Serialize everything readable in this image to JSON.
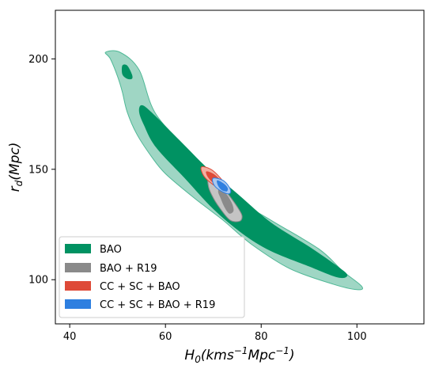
{
  "chart_data": {
    "type": "contour",
    "xlabel": {
      "base": "H",
      "base_sub": "0",
      "open": "(kms",
      "exp1": "−1",
      "mid": "Mpc",
      "exp2": "−1",
      "close": ")"
    },
    "ylabel": {
      "base": "r",
      "sub": "d",
      "rest": "(Mpc)"
    },
    "xlim": [
      37,
      114
    ],
    "ylim": [
      80,
      222
    ],
    "xticks": [
      40,
      60,
      80,
      100
    ],
    "yticks": [
      100,
      150,
      200
    ],
    "legend_placement": "bottom-left",
    "colors": {
      "BAO_outer": "#9fd6c4",
      "BAO_inner": "#009262",
      "BAO_edge": "#4fb896",
      "R19_outer": "#c4c4c4",
      "R19_inner": "#8a8a8a",
      "CC_outer": "#f2b0a2",
      "CC_inner": "#de4a38",
      "CCR19_outer": "#a9c8f0",
      "CCR19_inner": "#2e7fe0"
    },
    "series": [
      {
        "name": "BAO",
        "legend_color": "#009262",
        "regions": [
          {
            "level": "95%",
            "points": [
              [
                47.5,
                203
              ],
              [
                50.5,
                203
              ],
              [
                54.5,
                195
              ],
              [
                58,
                175
              ],
              [
                66,
                156
              ],
              [
                74,
                138
              ],
              [
                82,
                127
              ],
              [
                92,
                114
              ],
              [
                97,
                104
              ],
              [
                101,
                97
              ],
              [
                100,
                95.5
              ],
              [
                95,
                98
              ],
              [
                86,
                105
              ],
              [
                78,
                116
              ],
              [
                72,
                127
              ],
              [
                66,
                137
              ],
              [
                60,
                148
              ],
              [
                57,
                156
              ],
              [
                54,
                166
              ],
              [
                52,
                176
              ],
              [
                51,
                185
              ],
              [
                50,
                192
              ],
              [
                48.5,
                200
              ]
            ]
          },
          {
            "level": "68%",
            "points": [
              [
                55,
                179
              ],
              [
                57,
                176
              ],
              [
                63,
                163
              ],
              [
                69,
                150
              ],
              [
                75,
                139
              ],
              [
                82,
                126
              ],
              [
                90,
                115
              ],
              [
                96,
                106
              ],
              [
                98,
                102
              ],
              [
                96,
                101
              ],
              [
                90,
                106
              ],
              [
                82,
                113
              ],
              [
                76,
                121
              ],
              [
                70,
                132
              ],
              [
                64,
                146
              ],
              [
                58,
                160
              ],
              [
                55.5,
                170
              ],
              [
                54.5,
                176
              ]
            ]
          },
          {
            "level": "68%",
            "points": [
              [
                51,
                197
              ],
              [
                52,
                197
              ],
              [
                53,
                193
              ],
              [
                53,
                191
              ],
              [
                52,
                191
              ],
              [
                51,
                193
              ]
            ]
          }
        ]
      },
      {
        "name": "BAO + R19",
        "legend_color": "#8a8a8a",
        "regions": [
          {
            "level": "95%",
            "points": [
              [
                69,
                147
              ],
              [
                71,
                144
              ],
              [
                73,
                139
              ],
              [
                75,
                133
              ],
              [
                76,
                129
              ],
              [
                75.5,
                126.5
              ],
              [
                73.5,
                127
              ],
              [
                71.5,
                132
              ],
              [
                70,
                137
              ],
              [
                69,
                142
              ]
            ]
          },
          {
            "level": "68%",
            "points": [
              [
                71.5,
                142
              ],
              [
                73,
                138
              ],
              [
                74,
                134
              ],
              [
                74.2,
                131
              ],
              [
                73.3,
                130
              ],
              [
                72.3,
                133
              ],
              [
                71.5,
                137
              ],
              [
                71,
                140
              ]
            ]
          }
        ]
      },
      {
        "name": "CC + SC + BAO",
        "legend_color": "#de4a38",
        "regions": [
          {
            "level": "95%",
            "points": [
              [
                67.5,
                151
              ],
              [
                69.5,
                150
              ],
              [
                71.5,
                146
              ],
              [
                72.5,
                142.5
              ],
              [
                72,
                141
              ],
              [
                70,
                143
              ],
              [
                68,
                147
              ]
            ]
          },
          {
            "level": "68%",
            "points": [
              [
                68.5,
                149
              ],
              [
                70,
                148
              ],
              [
                71.5,
                145
              ],
              [
                71.7,
                143
              ],
              [
                70.5,
                143
              ],
              [
                69,
                146
              ]
            ]
          }
        ]
      },
      {
        "name": "CC + SC + BAO + R19",
        "legend_color": "#2e7fe0",
        "regions": [
          {
            "level": "95%",
            "points": [
              [
                70,
                146
              ],
              [
                72,
                145
              ],
              [
                73.3,
                142
              ],
              [
                73.6,
                139.5
              ],
              [
                72.8,
                139
              ],
              [
                71,
                141
              ],
              [
                70,
                143.5
              ]
            ]
          },
          {
            "level": "68%",
            "points": [
              [
                70.8,
                145
              ],
              [
                72.2,
                143.5
              ],
              [
                73,
                141.5
              ],
              [
                72.8,
                140
              ],
              [
                71.8,
                140.5
              ],
              [
                71,
                142.5
              ]
            ]
          }
        ]
      }
    ]
  }
}
